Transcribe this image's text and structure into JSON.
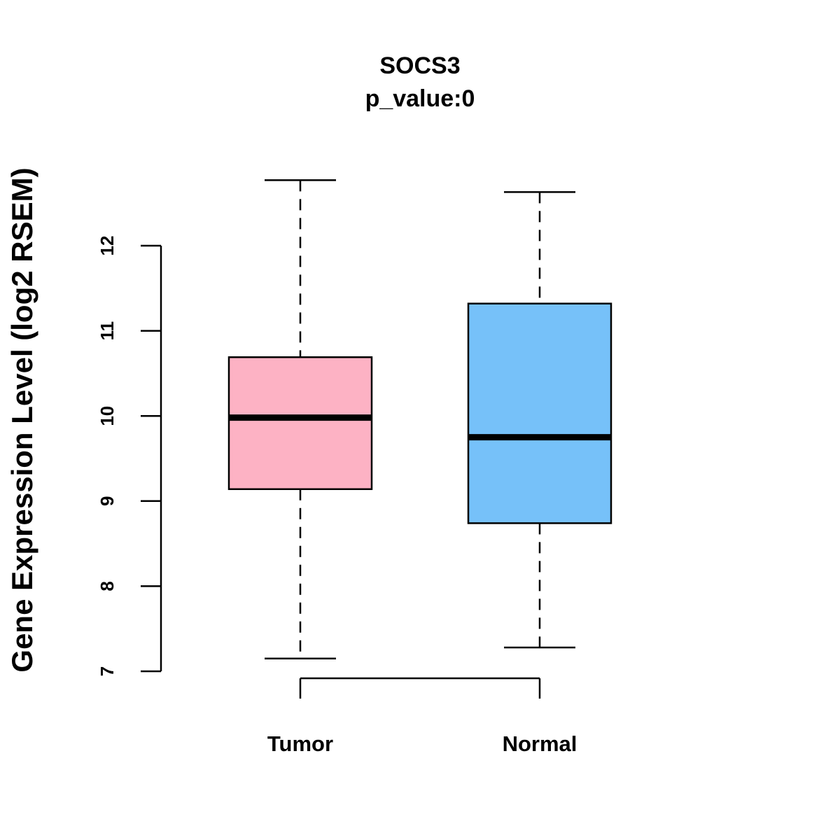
{
  "chart_data": {
    "type": "box",
    "title": "SOCS3",
    "subtitle": "p_value:0",
    "xlabel": "",
    "ylabel": "Gene Expression Level (log2 RSEM)",
    "ylim": [
      7,
      12
    ],
    "yticks": [
      "7",
      "8",
      "9",
      "10",
      "11",
      "12"
    ],
    "categories": [
      "Tumor",
      "Normal"
    ],
    "series": [
      {
        "name": "Tumor",
        "color": "#FDB2C4",
        "whisker_low": 7.15,
        "q1": 9.14,
        "median": 9.98,
        "q3": 10.69,
        "whisker_high": 12.77
      },
      {
        "name": "Normal",
        "color": "#76C1F9",
        "whisker_low": 7.28,
        "q1": 8.74,
        "median": 9.75,
        "q3": 11.32,
        "whisker_high": 12.63
      }
    ],
    "grid": false
  }
}
